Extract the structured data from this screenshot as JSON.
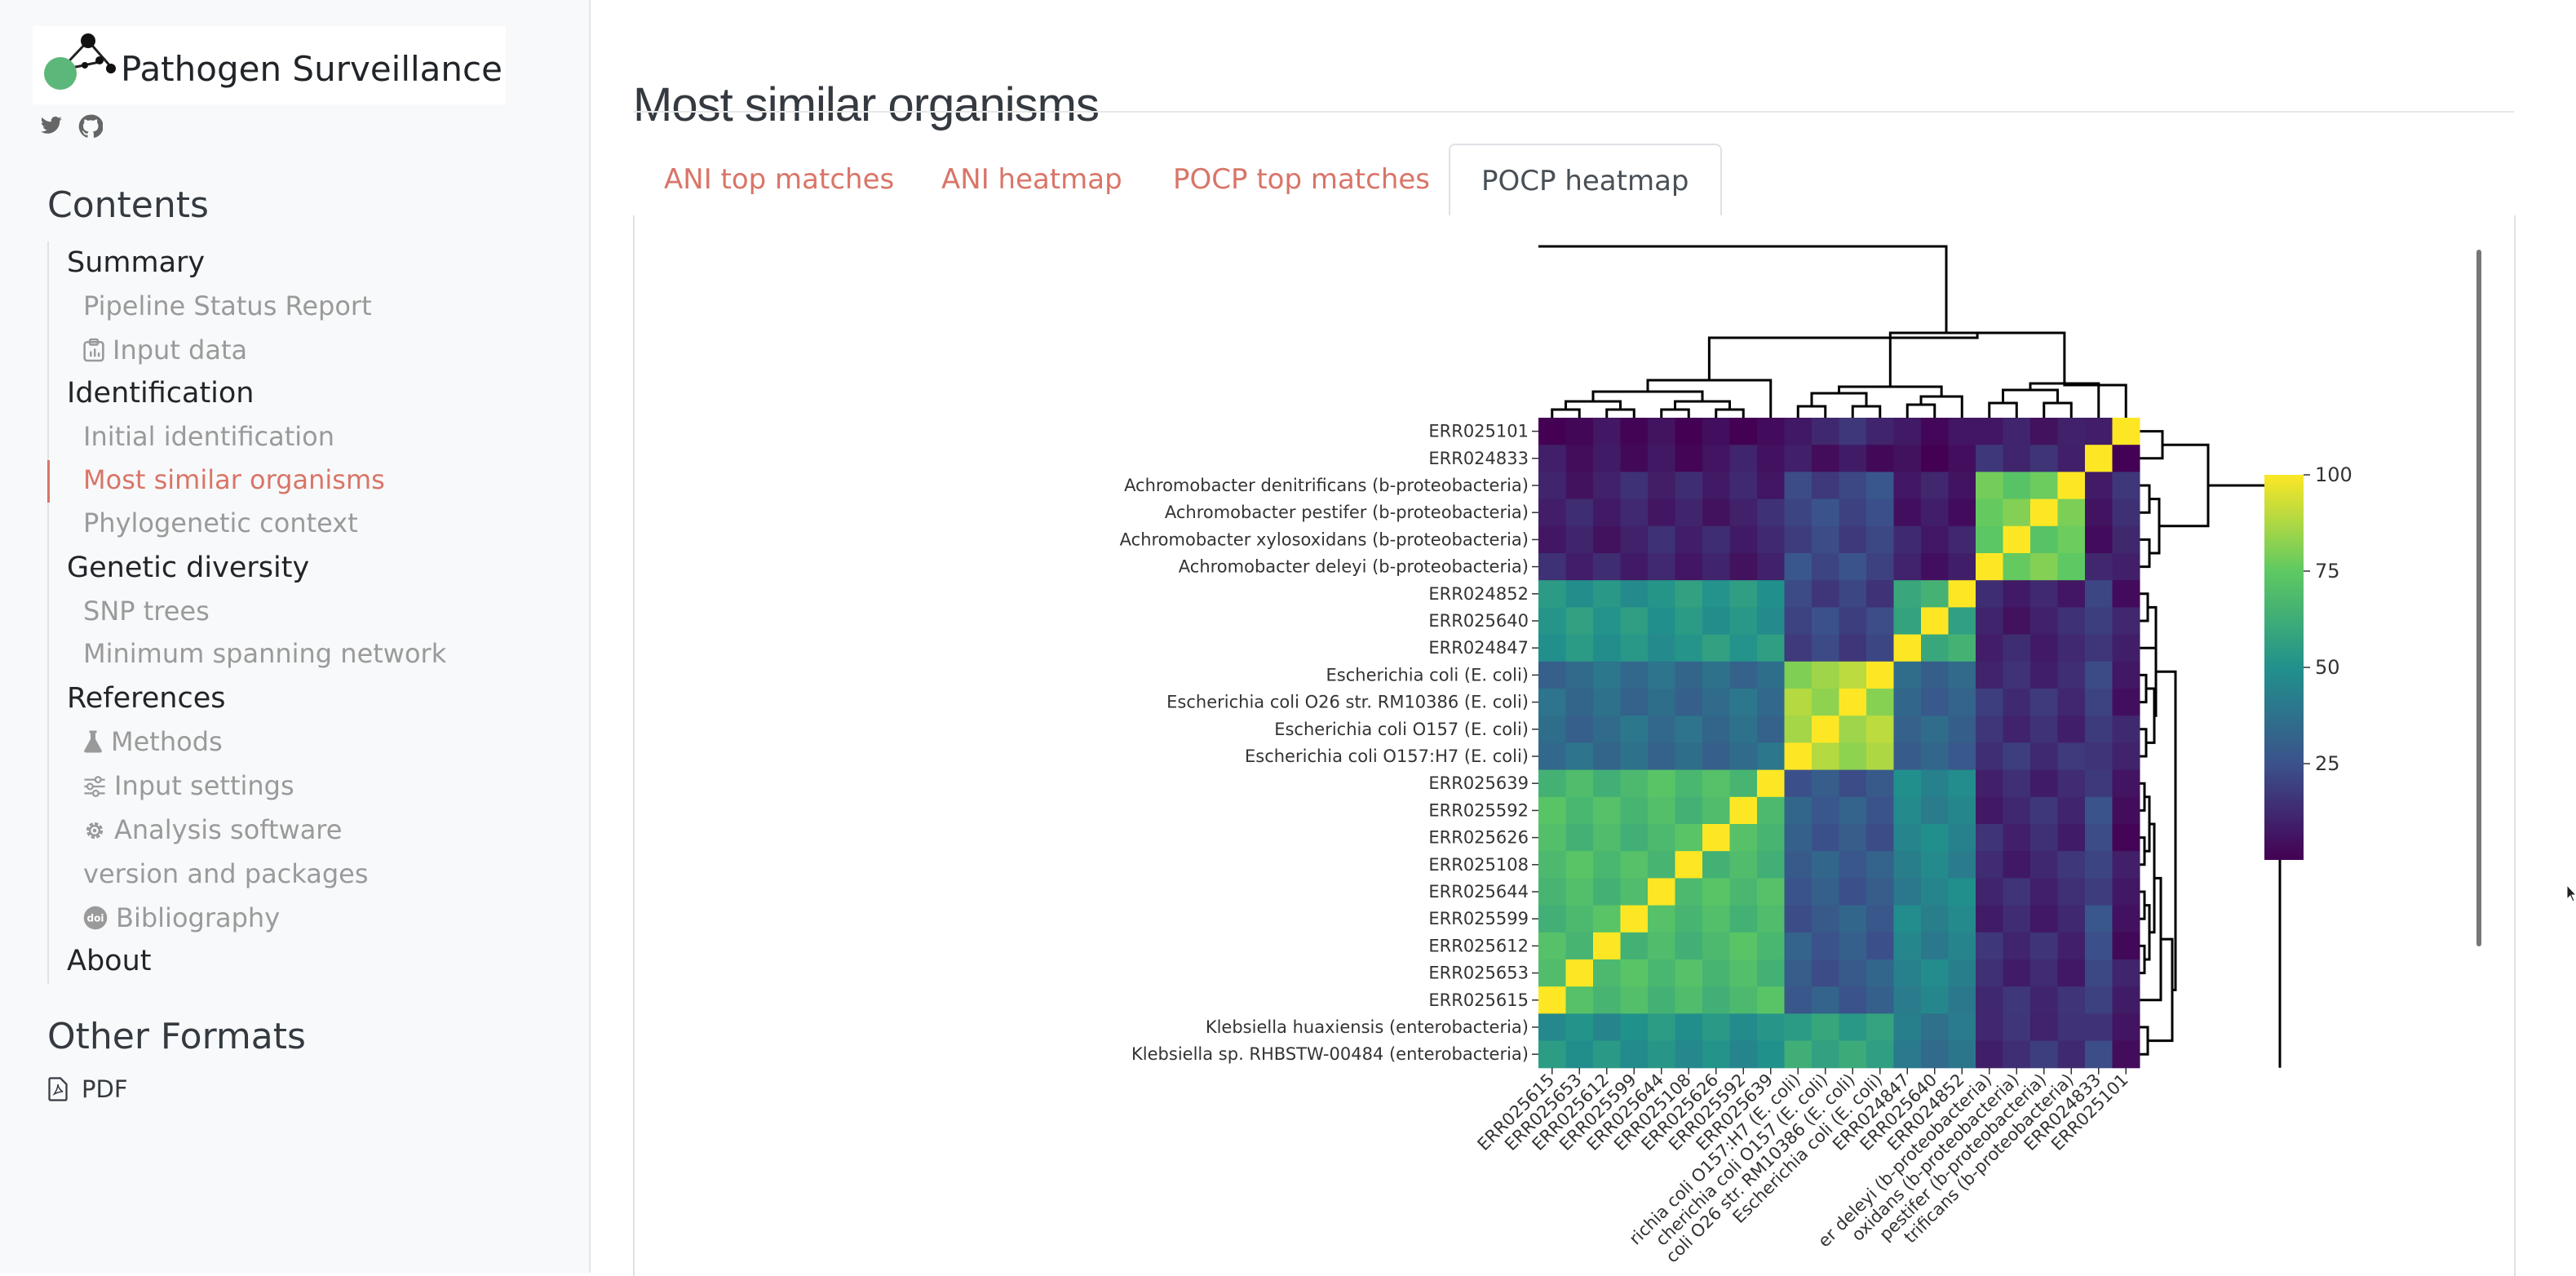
{
  "sidebar": {
    "logo_text": "Pathogen Surveillance",
    "contents_title": "Contents",
    "items": [
      {
        "label": "Summary",
        "level": 1,
        "icon": ""
      },
      {
        "label": "Pipeline Status Report",
        "level": 2,
        "icon": ""
      },
      {
        "label": "Input data",
        "level": 2,
        "icon": "clipboard-icon"
      },
      {
        "label": "Identification",
        "level": 1,
        "icon": ""
      },
      {
        "label": "Initial identification",
        "level": 2,
        "icon": ""
      },
      {
        "label": "Most similar organisms",
        "level": 2,
        "icon": "",
        "active": true
      },
      {
        "label": "Phylogenetic context",
        "level": 2,
        "icon": ""
      },
      {
        "label": "Genetic diversity",
        "level": 1,
        "icon": ""
      },
      {
        "label": "SNP trees",
        "level": 2,
        "icon": ""
      },
      {
        "label": "Minimum spanning network",
        "level": 2,
        "icon": ""
      },
      {
        "label": "References",
        "level": 1,
        "icon": ""
      },
      {
        "label": "Methods",
        "level": 2,
        "icon": "flask-icon"
      },
      {
        "label": "Input settings",
        "level": 2,
        "icon": "sliders-icon"
      },
      {
        "label": "Analysis software",
        "level": 2,
        "icon": "gear-icon"
      },
      {
        "label": "version and packages",
        "level": 2,
        "icon": ""
      },
      {
        "label": "Bibliography",
        "level": 2,
        "icon": "doi-icon"
      },
      {
        "label": "About",
        "level": 1,
        "icon": ""
      }
    ],
    "other_formats_title": "Other Formats",
    "pdf_label": "PDF"
  },
  "main": {
    "title": "Most similar organisms",
    "tabs": [
      {
        "label": "ANI top matches",
        "active": false
      },
      {
        "label": "ANI heatmap",
        "active": false
      },
      {
        "label": "POCP top matches",
        "active": false
      },
      {
        "label": "POCP heatmap",
        "active": true
      }
    ]
  },
  "colors": {
    "accent": "#d97568",
    "viridis_low": "#440154",
    "viridis_high": "#fde725"
  },
  "chart_data": {
    "type": "heatmap",
    "title": "",
    "rows": [
      "ERR025101",
      "ERR024833",
      "Achromobacter denitrificans (b-proteobacteria)",
      "Achromobacter pestifer (b-proteobacteria)",
      "Achromobacter xylosoxidans (b-proteobacteria)",
      "Achromobacter deleyi (b-proteobacteria)",
      "ERR024852",
      "ERR025640",
      "ERR024847",
      "Escherichia coli (E. coli)",
      "Escherichia coli O26 str. RM10386 (E. coli)",
      "Escherichia coli O157 (E. coli)",
      "Escherichia coli O157:H7 (E. coli)",
      "ERR025639",
      "ERR025592",
      "ERR025626",
      "ERR025108",
      "ERR025644",
      "ERR025599",
      "ERR025612",
      "ERR025653",
      "ERR025615",
      "Klebsiella huaxiensis (enterobacteria)",
      "Klebsiella sp. RHBSTW-00484 (enterobacteria)"
    ],
    "columns": [
      "ERR025615",
      "ERR025653",
      "ERR025612",
      "ERR025599",
      "ERR025644",
      "ERR025108",
      "ERR025626",
      "ERR025592",
      "ERR025639",
      "Escherichia coli O157:H7 (E. coli)",
      "Escherichia coli O157 (E. coli)",
      "Escherichia coli O26 str. RM10386 (E. coli)",
      "Escherichia coli (E. coli)",
      "ERR024847",
      "ERR025640",
      "ERR024852",
      "Achromobacter deleyi (b-proteobacteria)",
      "Achromobacter xylosoxidans (b-proteobacteria)",
      "Achromobacter pestifer (b-proteobacteria)",
      "Achromobacter denitrificans (b-proteobacteria)",
      "ERR024833",
      "ERR025101"
    ],
    "column_labels_visible": [
      "ERR025615",
      "ERR025653",
      "ERR025612",
      "ERR025599",
      "ERR025644",
      "ERR025108",
      "ERR025626",
      "ERR025592",
      "ERR025639",
      "richia coli O157:H7 (E. coli)",
      "cherichia coli O157 (E. coli)",
      "coli O26 str. RM10386 (E. coli)",
      "Escherichia coli (E. coli)",
      "ERR024847",
      "ERR025640",
      "ERR024852",
      "er deleyi (b-proteobacteria)",
      "oxidans (b-proteobacteria)",
      "pestifer (b-proteobacteria)",
      "trificans (b-proteobacteria)",
      "ERR024833",
      "ERR025101"
    ],
    "row_groups": [
      [
        0,
        0
      ],
      [
        1,
        1
      ],
      [
        2,
        5
      ],
      [
        6,
        8
      ],
      [
        9,
        12
      ],
      [
        13,
        21
      ],
      [
        22,
        23
      ]
    ],
    "col_groups": [
      [
        0,
        8
      ],
      [
        9,
        12
      ],
      [
        13,
        15
      ],
      [
        16,
        19
      ],
      [
        20,
        20
      ],
      [
        21,
        21
      ]
    ],
    "group_values": [
      [
        2,
        12,
        4,
        10,
        4,
        6
      ],
      [
        6,
        6,
        4,
        12,
        100,
        4
      ],
      [
        10,
        22,
        8,
        76,
        8,
        12
      ],
      [
        52,
        20,
        60,
        10,
        20,
        8
      ],
      [
        35,
        85,
        32,
        14,
        18,
        8
      ],
      [
        68,
        28,
        45,
        12,
        22,
        6
      ],
      [
        50,
        58,
        38,
        14,
        20,
        6
      ]
    ],
    "colorbar": {
      "ticks": [
        25,
        50,
        75,
        100
      ],
      "min": 0,
      "max": 100
    }
  }
}
